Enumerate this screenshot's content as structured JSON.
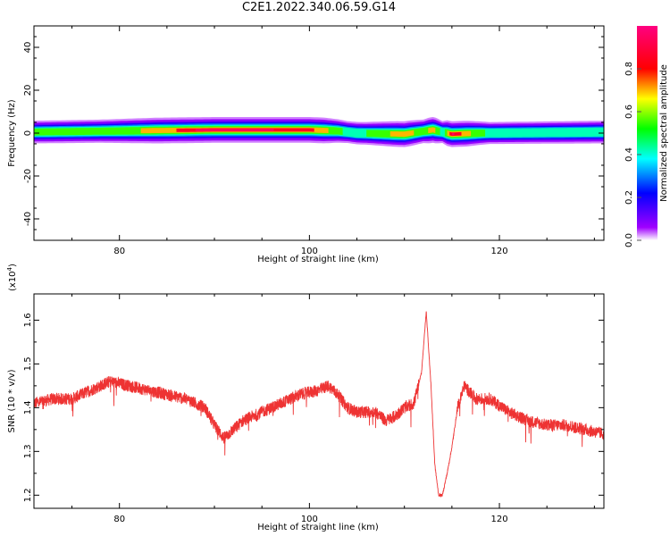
{
  "title": "C2E1.2022.340.06.59.G14",
  "chart_data": [
    {
      "type": "heatmap",
      "xlabel": "Height of straight line (km)",
      "ylabel": "Frequency (Hz)",
      "xlim": [
        71,
        131
      ],
      "ylim": [
        -50,
        50
      ],
      "x_ticks": [
        80,
        100,
        120
      ],
      "y_ticks": [
        40,
        20,
        0,
        -20,
        -40
      ],
      "colorbar": {
        "label": "Normalized spectral amplitude",
        "range": [
          0,
          1
        ],
        "ticks": [
          "0.0",
          "0.2",
          "0.4",
          "0.6",
          "0.8"
        ],
        "colors": [
          "#ffffff",
          "#a000ff",
          "#0000ff",
          "#00ffff",
          "#00ff00",
          "#ffff00",
          "#ff0000",
          "#ff0080"
        ]
      },
      "band": {
        "center_frequency_hz": [
          {
            "x": 71,
            "f": 0.5
          },
          {
            "x": 80,
            "f": 1.0
          },
          {
            "x": 90,
            "f": 1.5
          },
          {
            "x": 100,
            "f": 1.5
          },
          {
            "x": 103,
            "f": 1.0
          },
          {
            "x": 105,
            "f": 0.0
          },
          {
            "x": 110,
            "f": -0.5
          },
          {
            "x": 113,
            "f": 1.5
          },
          {
            "x": 115,
            "f": -0.5
          },
          {
            "x": 118,
            "f": 0.0
          },
          {
            "x": 131,
            "f": 0.5
          }
        ],
        "peak_amplitude": [
          {
            "x": 71,
            "a": 0.55
          },
          {
            "x": 78,
            "a": 0.58
          },
          {
            "x": 84,
            "a": 0.75
          },
          {
            "x": 88,
            "a": 0.95
          },
          {
            "x": 95,
            "a": 0.97
          },
          {
            "x": 100,
            "a": 0.9
          },
          {
            "x": 104,
            "a": 0.5
          },
          {
            "x": 106,
            "a": 0.55
          },
          {
            "x": 110,
            "a": 0.8
          },
          {
            "x": 112,
            "a": 0.6
          },
          {
            "x": 113,
            "a": 0.85
          },
          {
            "x": 114,
            "a": 0.5
          },
          {
            "x": 115,
            "a": 1.0
          },
          {
            "x": 117,
            "a": 0.7
          },
          {
            "x": 119,
            "a": 0.5
          },
          {
            "x": 131,
            "a": 0.55
          }
        ]
      }
    },
    {
      "type": "line",
      "xlabel": "Height of straight line (km)",
      "ylabel": "SNR (10 * v/v)",
      "y_multiplier": "(x10",
      "y_multiplier_exp": "4",
      "y_multiplier_close": ")",
      "xlim": [
        71,
        131
      ],
      "ylim": [
        1.17,
        1.66
      ],
      "x_ticks": [
        80,
        100,
        120
      ],
      "y_ticks": [
        1.2,
        1.3,
        1.4,
        1.5,
        1.6
      ],
      "color": "#ee3333",
      "x": [
        71,
        73,
        75,
        77,
        79,
        81,
        83,
        85,
        87,
        89,
        90,
        91,
        92,
        93,
        95,
        97,
        99,
        101,
        102,
        103,
        104,
        105,
        107,
        108,
        109,
        110,
        111,
        111.8,
        112.3,
        112.8,
        113.2,
        113.6,
        114.0,
        114.5,
        115,
        115.6,
        116.3,
        117.5,
        119,
        121,
        123,
        125,
        127,
        129,
        131
      ],
      "y": [
        1.41,
        1.42,
        1.42,
        1.44,
        1.46,
        1.45,
        1.44,
        1.43,
        1.42,
        1.4,
        1.36,
        1.33,
        1.35,
        1.37,
        1.39,
        1.41,
        1.43,
        1.44,
        1.45,
        1.43,
        1.4,
        1.39,
        1.39,
        1.37,
        1.38,
        1.4,
        1.41,
        1.48,
        1.62,
        1.45,
        1.27,
        1.2,
        1.2,
        1.25,
        1.31,
        1.4,
        1.45,
        1.42,
        1.42,
        1.39,
        1.37,
        1.36,
        1.36,
        1.35,
        1.34
      ]
    }
  ]
}
